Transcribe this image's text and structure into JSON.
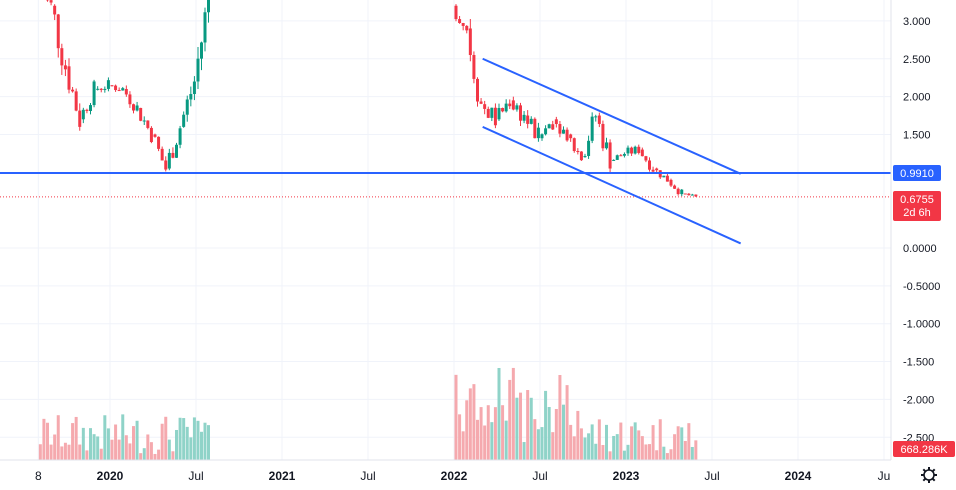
{
  "chart_data": {
    "type": "candlestick",
    "y_axis": {
      "ticks": [
        "3.000",
        "2.500",
        "2.000",
        "1.500",
        "0.0000",
        "-0.5000",
        "-1.0000",
        "-1.500",
        "-2.000",
        "-2.500"
      ],
      "tick_values": [
        3.0,
        2.5,
        2.0,
        1.5,
        0.0,
        -0.5,
        -1.0,
        -1.5,
        -2.0,
        -2.5
      ],
      "range": [
        -2.7,
        3.3
      ]
    },
    "x_axis": {
      "ticks": [
        "8",
        "2020",
        "Jul",
        "2021",
        "Jul",
        "2022",
        "Jul",
        "2023",
        "Jul",
        "2024",
        "Ju"
      ],
      "tick_dates": [
        "2019-08",
        "2020-01",
        "2020-07",
        "2021-01",
        "2021-07",
        "2022-01",
        "2022-07",
        "2023-01",
        "2023-07",
        "2024-01",
        "2024-07"
      ]
    },
    "price_line": {
      "value": 0.6755,
      "label": "0.6755",
      "countdown": "2d 6h",
      "color": "#f23645"
    },
    "support_line": {
      "value": 0.991,
      "label": "0.9910",
      "color": "#2962ff"
    },
    "channel": {
      "upper": [
        [
          "2022-03",
          2.5
        ],
        [
          "2023-09",
          0.98
        ]
      ],
      "lower": [
        [
          "2022-03",
          1.6
        ],
        [
          "2023-09",
          0.06
        ]
      ],
      "color": "#2962ff"
    },
    "volume_label": "668.286K",
    "up_color": "#089981",
    "down_color": "#f23645",
    "candles_early": [
      [
        "2019-08",
        3.4,
        3.5,
        2.9,
        3.2
      ],
      [
        "2019-09",
        3.2,
        3.3,
        2.2,
        2.4
      ],
      [
        "2019-10",
        2.4,
        2.5,
        1.6,
        1.7
      ],
      [
        "2019-11",
        1.7,
        2.2,
        1.65,
        2.1
      ],
      [
        "2019-12",
        2.1,
        2.25,
        1.9,
        2.15
      ],
      [
        "2020-01",
        2.15,
        2.3,
        2.0,
        2.1
      ],
      [
        "2020-02",
        2.1,
        2.2,
        1.75,
        1.85
      ],
      [
        "2020-03",
        1.85,
        1.95,
        1.4,
        1.5
      ],
      [
        "2020-04",
        1.5,
        1.6,
        0.98,
        1.05
      ],
      [
        "2020-05",
        1.05,
        1.7,
        1.0,
        1.6
      ],
      [
        "2020-06",
        1.6,
        2.4,
        1.55,
        2.2
      ],
      [
        "2020-07",
        2.2,
        3.4,
        2.1,
        3.3
      ]
    ],
    "candles_late": [
      [
        "2022-01",
        3.2,
        3.3,
        2.8,
        2.9
      ],
      [
        "2022-02",
        2.9,
        2.95,
        1.8,
        1.9
      ],
      [
        "2022-03",
        1.9,
        2.2,
        1.55,
        1.7
      ],
      [
        "2022-04",
        1.7,
        2.1,
        1.6,
        1.95
      ],
      [
        "2022-05",
        1.95,
        2.3,
        1.6,
        1.75
      ],
      [
        "2022-06",
        1.75,
        1.95,
        1.3,
        1.45
      ],
      [
        "2022-07",
        1.45,
        1.9,
        1.3,
        1.7
      ],
      [
        "2022-08",
        1.7,
        1.8,
        1.4,
        1.5
      ],
      [
        "2022-09",
        1.5,
        1.6,
        1.0,
        1.2
      ],
      [
        "2022-10",
        1.2,
        1.85,
        1.15,
        1.75
      ],
      [
        "2022-11",
        1.75,
        1.8,
        1.05,
        1.15
      ],
      [
        "2022-12",
        1.15,
        1.3,
        1.05,
        1.25
      ],
      [
        "2023-01",
        1.25,
        1.45,
        1.15,
        1.3
      ],
      [
        "2023-02",
        1.3,
        1.35,
        1.0,
        1.05
      ],
      [
        "2023-03",
        1.05,
        1.1,
        0.85,
        0.9
      ],
      [
        "2023-04",
        0.9,
        0.95,
        0.7,
        0.72
      ],
      [
        "2023-05",
        0.72,
        0.74,
        0.65,
        0.6755
      ]
    ]
  }
}
